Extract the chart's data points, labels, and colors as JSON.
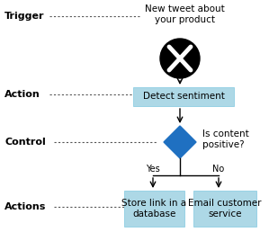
{
  "bg_color": "#ffffff",
  "label_color": "#000000",
  "box_color": "#add8e6",
  "diamond_color": "#1f70c1",
  "twitter_bg": "#000000",
  "twitter_x_color": "#ffffff",
  "arrow_color": "#000000",
  "dotted_line_color": "#555555",
  "labels": {
    "trigger": "Trigger",
    "action": "Action",
    "control": "Control",
    "actions": "Actions"
  },
  "tweet_text": "New tweet about\nyour product",
  "detect_text": "Detect sentiment",
  "control_text": "Is content\npositive?",
  "yes_text": "Store link in a\ndatabase",
  "no_text": "Email customer\nservice",
  "yes_label": "Yes",
  "no_label": "No",
  "font_size_label": 8,
  "font_size_box": 7.5,
  "font_size_tweet": 7.5,
  "font_size_yesno": 7
}
